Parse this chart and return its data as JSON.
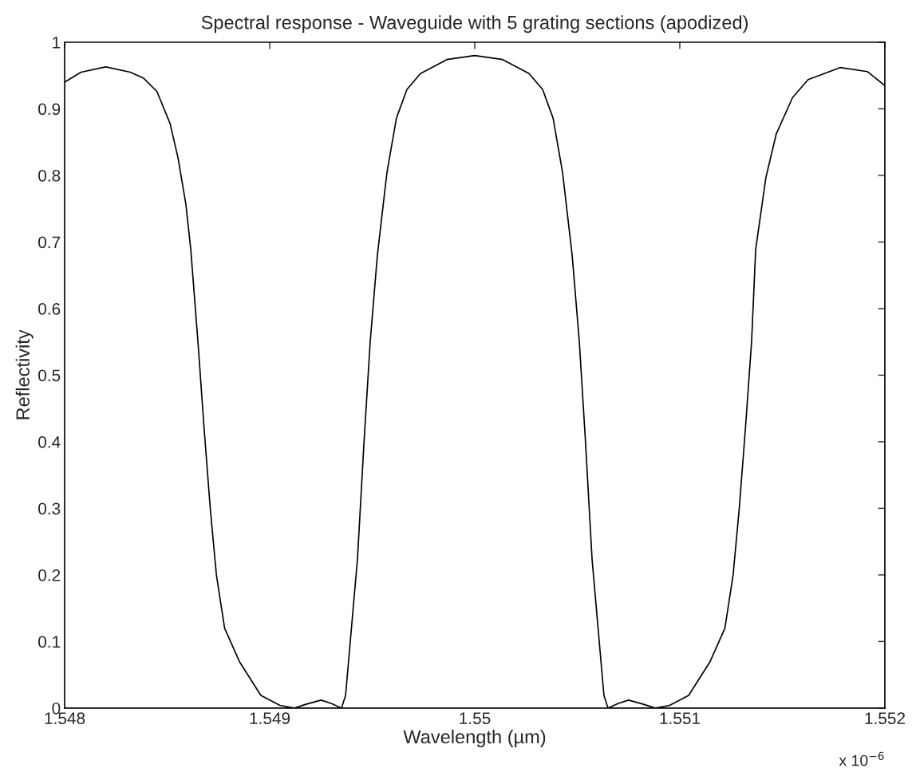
{
  "chart_data": {
    "type": "line",
    "title": "Spectral response - Waveguide with 5 grating sections (apodized)",
    "xlabel": "Wavelength (µm)",
    "ylabel": "Reflectivity",
    "annotations": [
      "x 10$^{−6}$"
    ],
    "series": [
      {
        "color": "#000000",
        "x": [
          1.548,
          1.54808,
          1.5482,
          1.54832,
          1.548385,
          1.54845,
          1.548514,
          1.548553,
          1.548591,
          1.548615,
          1.54865,
          1.54868,
          1.54871,
          1.54874,
          1.54878,
          1.548852,
          1.548957,
          1.54905,
          1.54912,
          1.54918,
          1.54925,
          1.5493,
          1.54935,
          1.54937,
          1.549428,
          1.54946,
          1.54949,
          1.549525,
          1.549572,
          1.549618,
          1.549669,
          1.549735,
          1.549864,
          1.55,
          1.550136,
          1.550265,
          1.550331,
          1.550382,
          1.550428,
          1.550475,
          1.55051,
          1.55054,
          1.550572,
          1.55063,
          1.55065,
          1.5507,
          1.55075,
          1.55082,
          1.55088,
          1.55095,
          1.551043,
          1.551148,
          1.55122,
          1.55126,
          1.55129,
          1.55132,
          1.55135,
          1.55137,
          1.55142,
          1.55147,
          1.55155,
          1.551626,
          1.551782,
          1.551914,
          1.552
        ],
        "values": [
          0.94,
          0.955,
          0.963,
          0.955,
          0.946,
          0.926,
          0.878,
          0.826,
          0.757,
          0.689,
          0.55,
          0.42,
          0.3,
          0.2,
          0.12,
          0.07,
          0.019,
          0.004,
          0,
          0.006,
          0.012,
          0.007,
          0,
          0.019,
          0.224,
          0.4,
          0.55,
          0.68,
          0.805,
          0.886,
          0.929,
          0.953,
          0.974,
          0.98,
          0.974,
          0.953,
          0.929,
          0.886,
          0.805,
          0.68,
          0.55,
          0.4,
          0.224,
          0.019,
          0,
          0.007,
          0.012,
          0.006,
          0,
          0.004,
          0.019,
          0.07,
          0.12,
          0.2,
          0.3,
          0.42,
          0.55,
          0.689,
          0.797,
          0.862,
          0.917,
          0.944,
          0.962,
          0.956,
          0.935
        ]
      }
    ],
    "xlim": [
      1.548,
      1.552
    ],
    "xticks": [
      1.548,
      1.549,
      {
        "value": 1.55,
        "label": "1.55"
      },
      1.551,
      1.552
    ],
    "ylim": [
      0,
      1
    ],
    "yticks": [
      0,
      0.1,
      0.2,
      0.3,
      0.4,
      0.5,
      0.6,
      0.7,
      0.8,
      0.9,
      1
    ],
    "grid": false,
    "legend": false,
    "marker": "none",
    "line_style": "solid"
  }
}
